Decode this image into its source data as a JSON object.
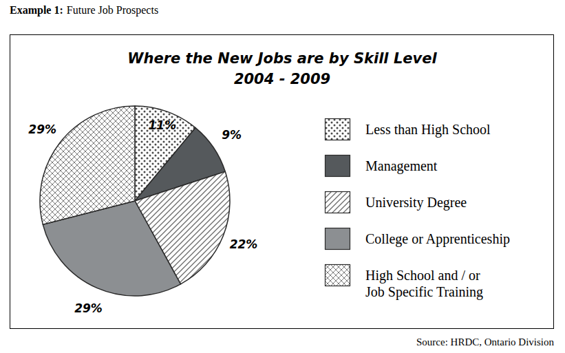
{
  "heading": {
    "label": "Example 1:",
    "text": "Future Job Prospects"
  },
  "source": "Source: HRDC, Ontario Division",
  "chart_data": {
    "type": "pie",
    "title": "Where the New Jobs are by Skill Level",
    "subtitle": "2004 - 2009",
    "categories": [
      "Less than High School",
      "Management",
      "University Degree",
      "College or Apprenticeship",
      "High School and / or\nJob Specific Training"
    ],
    "values": [
      11,
      9,
      22,
      29,
      29
    ],
    "value_labels": [
      "11%",
      "9%",
      "22%",
      "29%",
      "29%"
    ],
    "colors": [
      "#4a4a4a",
      "#55595c",
      "#6a6a6a",
      "#8c8f92",
      "#7a7a7a"
    ],
    "data_labels": true,
    "legend": "right"
  }
}
